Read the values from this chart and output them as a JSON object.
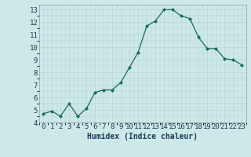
{
  "x": [
    0,
    1,
    2,
    3,
    4,
    5,
    6,
    7,
    8,
    9,
    10,
    11,
    12,
    13,
    14,
    15,
    16,
    17,
    18,
    19,
    20,
    21,
    22,
    23
  ],
  "y": [
    4.7,
    4.9,
    4.5,
    5.5,
    4.5,
    5.1,
    6.4,
    6.6,
    6.6,
    7.2,
    8.4,
    9.6,
    11.7,
    12.1,
    13.0,
    13.0,
    12.5,
    12.3,
    10.8,
    9.9,
    9.9,
    9.1,
    9.0,
    8.6
  ],
  "line_color": "#1a6b5a",
  "marker_color": "#1a6b5a",
  "bg_color": "#cce8e8",
  "grid_color": "#b8d4d4",
  "xlabel": "Humidex (Indice chaleur)",
  "xlim": [
    -0.5,
    23.5
  ],
  "ylim": [
    4,
    13.4
  ],
  "xticks": [
    0,
    1,
    2,
    3,
    4,
    5,
    6,
    7,
    8,
    9,
    10,
    11,
    12,
    13,
    14,
    15,
    16,
    17,
    18,
    19,
    20,
    21,
    22,
    23
  ],
  "yticks": [
    4,
    5,
    6,
    7,
    8,
    9,
    10,
    11,
    12,
    13
  ],
  "label_fontsize": 7,
  "tick_fontsize": 6.5
}
